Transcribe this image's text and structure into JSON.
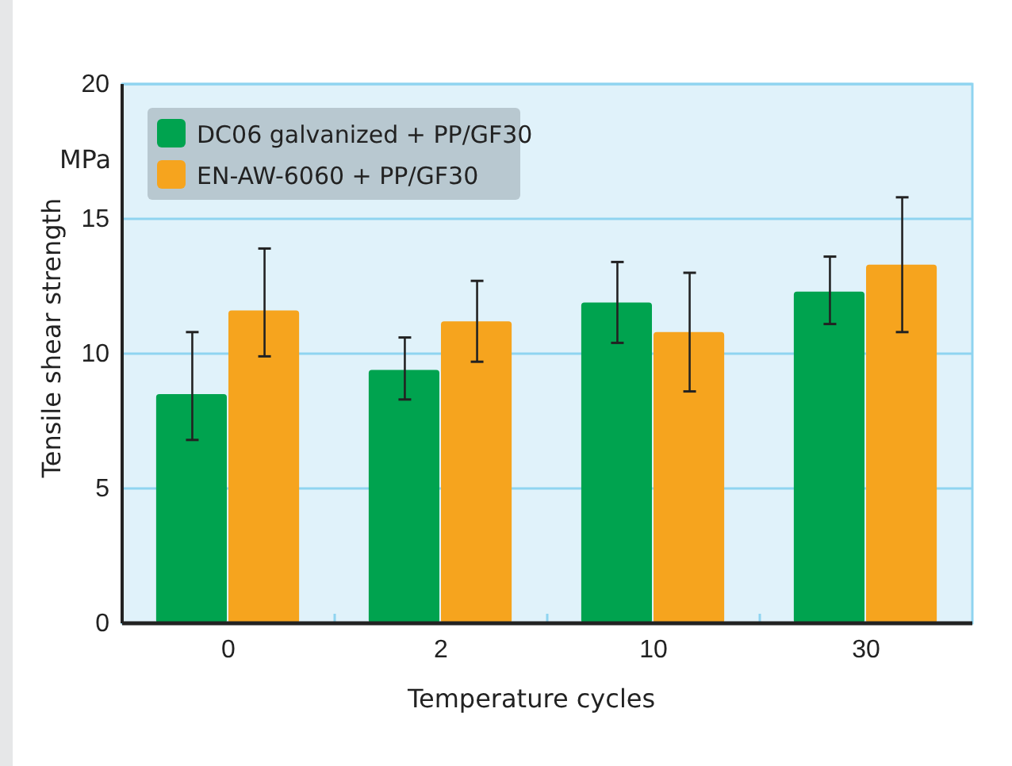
{
  "chart_data": {
    "type": "bar",
    "xlabel": "Temperature cycles",
    "ylabel": "Tensile shear strength",
    "annotations": [
      "MPa"
    ],
    "categories": [
      "0",
      "2",
      "10",
      "30"
    ],
    "series": [
      {
        "name": "DC06 galvanized + PP/GF30",
        "color": "#00a34f",
        "values": [
          8.5,
          9.4,
          11.9,
          12.3
        ],
        "errors": [
          [
            6.8,
            10.8
          ],
          [
            8.3,
            10.6
          ],
          [
            10.4,
            13.4
          ],
          [
            11.1,
            13.6
          ]
        ]
      },
      {
        "name": "EN-AW-6060 + PP/GF30",
        "color": "#f6a41e",
        "values": [
          11.6,
          11.2,
          10.8,
          13.3
        ],
        "errors": [
          [
            9.9,
            13.9
          ],
          [
            9.7,
            12.7
          ],
          [
            8.6,
            13.0
          ],
          [
            10.8,
            15.8
          ]
        ]
      }
    ],
    "ylim": [
      0,
      20
    ],
    "yticks": [
      0,
      5,
      10,
      15,
      20
    ],
    "grid": "y",
    "legend": "top left"
  }
}
